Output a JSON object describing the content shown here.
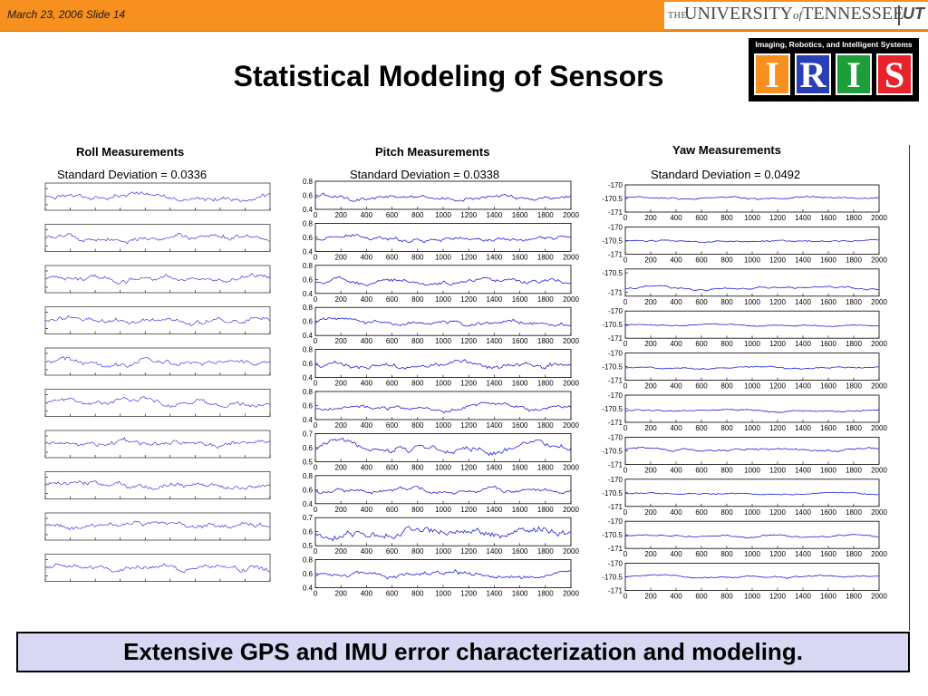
{
  "header": {
    "slide_info": "March 23, 2006 Slide 14",
    "org_the": "THE",
    "org_university": "UNIVERSITY",
    "org_of": "of",
    "org_tennessee": "TENNESSEE",
    "org_mark": "UT"
  },
  "title": "Statistical Modeling of Sensors",
  "iris_logo": {
    "caption": "Imaging, Robotics, and Intelligent Systems",
    "letters": [
      {
        "char": "I",
        "color": "#f7901e"
      },
      {
        "char": "R",
        "color": "#2b3fb4"
      },
      {
        "char": "I",
        "color": "#1e9e3a"
      },
      {
        "char": "S",
        "color": "#e8222a"
      }
    ]
  },
  "columns": {
    "roll": {
      "heading": "Roll Measurements",
      "std": "Standard Deviation = 0.0336"
    },
    "pitch": {
      "heading": "Pitch Measurements",
      "std": "Standard Deviation = 0.0338"
    },
    "yaw": {
      "heading": "Yaw Measurements",
      "std": "Standard Deviation = 0.0492"
    }
  },
  "footer_text": "Extensive GPS and IMU error characterization and modeling.",
  "colors": {
    "topbar": "#f7901e",
    "plot_line": "#1f1fd6",
    "footer_bg": "#d8d8f4"
  },
  "chart_data": [
    {
      "type": "line",
      "name": "roll",
      "panel_count": 10,
      "x_range": [
        0,
        2000
      ],
      "series_color": "#1f1fd6"
    },
    {
      "type": "line",
      "name": "pitch",
      "panel_count": 10,
      "xticks": [
        "0",
        "200",
        "400",
        "600",
        "800",
        "1000",
        "1200",
        "1400",
        "1600",
        "1800",
        "2000"
      ],
      "x_range": [
        0,
        2000
      ],
      "panels": [
        {
          "yticks": [
            "0.8",
            "0.6",
            "0.4"
          ],
          "ylim": [
            0.4,
            0.8
          ],
          "mean": 0.57,
          "amp": 0.04
        },
        {
          "yticks": [
            "0.8",
            "0.6",
            "0.4"
          ],
          "ylim": [
            0.4,
            0.8
          ],
          "mean": 0.58,
          "amp": 0.04
        },
        {
          "yticks": [
            "0.8",
            "0.6",
            "0.4"
          ],
          "ylim": [
            0.4,
            0.8
          ],
          "mean": 0.57,
          "amp": 0.04
        },
        {
          "yticks": [
            "0.8",
            "0.6",
            "0.4"
          ],
          "ylim": [
            0.4,
            0.8
          ],
          "mean": 0.59,
          "amp": 0.04
        },
        {
          "yticks": [
            "0.8",
            "0.6",
            "0.4"
          ],
          "ylim": [
            0.4,
            0.8
          ],
          "mean": 0.58,
          "amp": 0.05
        },
        {
          "yticks": [
            "0.8",
            "0.6",
            "0.4"
          ],
          "ylim": [
            0.4,
            0.8
          ],
          "mean": 0.57,
          "amp": 0.04
        },
        {
          "yticks": [
            "0.7",
            "0.6",
            "0.5"
          ],
          "ylim": [
            0.5,
            0.7
          ],
          "mean": 0.59,
          "amp": 0.03
        },
        {
          "yticks": [
            "0.8",
            "0.6",
            "0.4"
          ],
          "ylim": [
            0.4,
            0.8
          ],
          "mean": 0.58,
          "amp": 0.04
        },
        {
          "yticks": [
            "0.7",
            "0.6",
            "0.5"
          ],
          "ylim": [
            0.5,
            0.7
          ],
          "mean": 0.59,
          "amp": 0.035
        },
        {
          "yticks": [
            "0.8",
            "0.6",
            "0.4"
          ],
          "ylim": [
            0.4,
            0.8
          ],
          "mean": 0.58,
          "amp": 0.04
        }
      ]
    },
    {
      "type": "line",
      "name": "yaw",
      "panel_count": 10,
      "xticks": [
        "0",
        "200",
        "400",
        "600",
        "800",
        "1000",
        "1200",
        "1400",
        "1600",
        "1800",
        "2000"
      ],
      "x_range": [
        0,
        2000
      ],
      "panels": [
        {
          "yticks": [
            "-170",
            "-170.5",
            "-171"
          ],
          "ylim": [
            -171,
            -170
          ],
          "mean": -170.48,
          "amp": 0.04
        },
        {
          "yticks": [
            "-170",
            "-170.5",
            "-171"
          ],
          "ylim": [
            -171,
            -170
          ],
          "mean": -170.52,
          "amp": 0.04
        },
        {
          "yticks": [
            "-170.5",
            "-171"
          ],
          "ylim": [
            -171.1,
            -170.4
          ],
          "mean": -170.9,
          "amp": 0.04
        },
        {
          "yticks": [
            "-170",
            "-170.5",
            "-171"
          ],
          "ylim": [
            -171,
            -170
          ],
          "mean": -170.52,
          "amp": 0.03
        },
        {
          "yticks": [
            "-170",
            "-170.5",
            "-171"
          ],
          "ylim": [
            -171,
            -170
          ],
          "mean": -170.55,
          "amp": 0.04
        },
        {
          "yticks": [
            "-170",
            "-170.5",
            "-171"
          ],
          "ylim": [
            -171,
            -170
          ],
          "mean": -170.58,
          "amp": 0.04
        },
        {
          "yticks": [
            "-170",
            "-170.5",
            "-171"
          ],
          "ylim": [
            -171,
            -170
          ],
          "mean": -170.45,
          "amp": 0.05
        },
        {
          "yticks": [
            "-170",
            "-170.5",
            "-171"
          ],
          "ylim": [
            -171,
            -170
          ],
          "mean": -170.52,
          "amp": 0.03
        },
        {
          "yticks": [
            "-170",
            "-170.5",
            "-171"
          ],
          "ylim": [
            -171,
            -170
          ],
          "mean": -170.55,
          "amp": 0.04
        },
        {
          "yticks": [
            "-170",
            "-170.5",
            "-171"
          ],
          "ylim": [
            -171,
            -170
          ],
          "mean": -170.5,
          "amp": 0.04
        }
      ]
    }
  ]
}
